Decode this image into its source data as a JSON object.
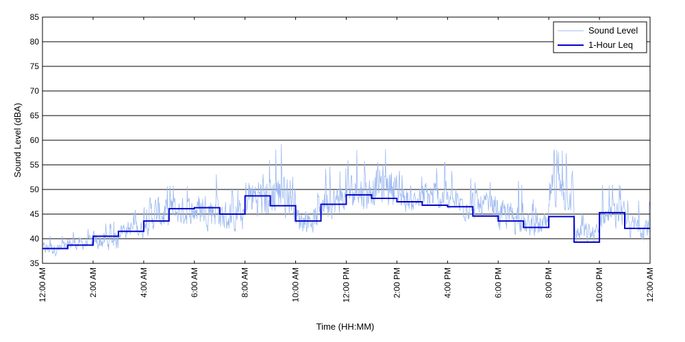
{
  "chart_data": {
    "type": "line",
    "xlabel": "Time (HH:MM)",
    "ylabel": "Sound Level (dBA)",
    "ylim": [
      35,
      85
    ],
    "xlim": [
      0,
      24
    ],
    "grid": "horizontal",
    "legend_placement": "top-right",
    "x_tick_labels": [
      "12:00 AM",
      "2:00 AM",
      "4:00 AM",
      "6:00 AM",
      "8:00 AM",
      "10:00 AM",
      "12:00 PM",
      "2:00 PM",
      "4:00 PM",
      "6:00 PM",
      "8:00 PM",
      "10:00 PM",
      "12:00 AM"
    ],
    "y_ticks": [
      35,
      40,
      45,
      50,
      55,
      60,
      65,
      70,
      75,
      80,
      85
    ],
    "series": [
      {
        "name": "Sound Level",
        "color": "#9bb8f0",
        "style": "thin-line",
        "hourly_bands": [
          {
            "hour": 0,
            "lo": 35,
            "hi": 41
          },
          {
            "hour": 1,
            "lo": 36,
            "hi": 42
          },
          {
            "hour": 2,
            "lo": 35,
            "hi": 44
          },
          {
            "hour": 3,
            "lo": 38,
            "hi": 46
          },
          {
            "hour": 4,
            "lo": 37,
            "hi": 53
          },
          {
            "hour": 5,
            "lo": 39,
            "hi": 52
          },
          {
            "hour": 6,
            "lo": 38,
            "hi": 54
          },
          {
            "hour": 7,
            "lo": 37,
            "hi": 52
          },
          {
            "hour": 8,
            "lo": 38,
            "hi": 59
          },
          {
            "hour": 9,
            "lo": 38,
            "hi": 60
          },
          {
            "hour": 10,
            "lo": 38,
            "hi": 50
          },
          {
            "hour": 11,
            "lo": 40,
            "hi": 55
          },
          {
            "hour": 12,
            "lo": 41,
            "hi": 58
          },
          {
            "hour": 13,
            "lo": 41,
            "hi": 61
          },
          {
            "hour": 14,
            "lo": 42,
            "hi": 54
          },
          {
            "hour": 15,
            "lo": 41,
            "hi": 56
          },
          {
            "hour": 16,
            "lo": 40,
            "hi": 54
          },
          {
            "hour": 17,
            "lo": 40,
            "hi": 53
          },
          {
            "hour": 18,
            "lo": 37,
            "hi": 52
          },
          {
            "hour": 19,
            "lo": 37,
            "hi": 48
          },
          {
            "hour": 20,
            "lo": 40,
            "hi": 59
          },
          {
            "hour": 21,
            "lo": 36,
            "hi": 46
          },
          {
            "hour": 22,
            "lo": 38,
            "hi": 51
          },
          {
            "hour": 23,
            "lo": 37,
            "hi": 48
          }
        ]
      },
      {
        "name": "1-Hour Leq",
        "color": "#0000cc",
        "style": "step",
        "hours": [
          0,
          1,
          2,
          3,
          4,
          5,
          6,
          7,
          8,
          9,
          10,
          11,
          12,
          13,
          14,
          15,
          16,
          17,
          18,
          19,
          20,
          21,
          22,
          23
        ],
        "values": [
          38.0,
          38.7,
          40.5,
          41.5,
          43.6,
          46.1,
          46.3,
          45.0,
          48.7,
          46.7,
          43.6,
          47.0,
          48.9,
          48.2,
          47.5,
          46.8,
          46.5,
          44.6,
          43.6,
          42.3,
          44.5,
          39.3,
          45.3,
          42.1
        ]
      }
    ]
  }
}
